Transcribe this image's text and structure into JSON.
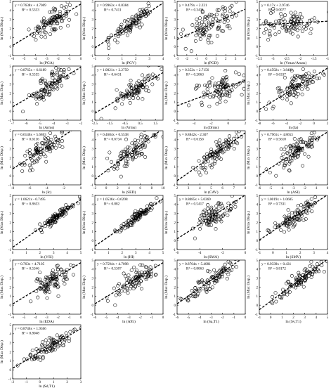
{
  "figure": {
    "ylabel": "ln (Max Disp.)",
    "panels": [
      {
        "xlabel": "ln (PGA)",
        "eq": "y = 0.7638x + 4.7069",
        "r2": "R² = 0.5333",
        "xlim": [
          -6,
          0
        ],
        "xticks": [
          -6,
          -5,
          -4,
          -3,
          -2,
          -1,
          0
        ],
        "ylim": [
          -1,
          5
        ],
        "yticks": [
          -1,
          0,
          1,
          2,
          3,
          4,
          5
        ],
        "slope": 0.7638,
        "intercept": 4.7069,
        "cx": -2.5,
        "sx": 0.9
      },
      {
        "xlabel": "ln (PGV)",
        "eq": "y = 0.9963x + 0.8384",
        "r2": "R² = 0.7411",
        "xlim": [
          -1,
          4
        ],
        "xticks": [
          -1,
          0,
          1,
          2,
          3,
          4
        ],
        "ylim": [
          -1,
          5
        ],
        "yticks": [
          -1,
          0,
          1,
          2,
          3,
          4,
          5
        ],
        "slope": 0.9963,
        "intercept": 0.8384,
        "cx": 1.8,
        "sx": 0.8
      },
      {
        "xlabel": "ln (PGD)",
        "eq": "y = 0.479x + 2.221",
        "r2": "R² = 0.3431",
        "xlim": [
          -3,
          4
        ],
        "xticks": [
          -3,
          -2,
          -1,
          0,
          1,
          2,
          3,
          4
        ],
        "ylim": [
          -1,
          5
        ],
        "yticks": [
          -1,
          0,
          1,
          2,
          3,
          4,
          5
        ],
        "slope": 0.479,
        "intercept": 2.221,
        "cx": 0.5,
        "sx": 1.2
      },
      {
        "xlabel": "ln (Vmax/Amax)",
        "eq": "y = 0.17x + 2.9746",
        "r2": "R² = 0.0077",
        "xlim": [
          -3.5,
          -1
        ],
        "xticks": [
          -3.5,
          -3,
          -2.5,
          -2,
          -1.5,
          -1
        ],
        "ylim": [
          -1,
          5
        ],
        "yticks": [
          -1,
          0,
          1,
          2,
          3,
          4,
          5
        ],
        "slope": 0.17,
        "intercept": 2.9746,
        "cx": -2.4,
        "sx": 0.5
      },
      {
        "xlabel": "ln (Arms)",
        "eq": "y = 0.8765x + 6.6189",
        "r2": "R² = 0.5555",
        "xlim": [
          -7,
          -2
        ],
        "xticks": [
          -7,
          -6,
          -5,
          -4,
          -3,
          -2
        ],
        "ylim": [
          -1,
          5
        ],
        "yticks": [
          -1,
          0,
          1,
          2,
          3,
          4,
          5
        ],
        "slope": 0.8765,
        "intercept": 6.6189,
        "cx": -4.2,
        "sx": 0.8
      },
      {
        "xlabel": "ln (Vrms)",
        "eq": "y = 1.0021x + 2.2759",
        "r2": "R² = 0.6431",
        "xlim": [
          -2.5,
          2
        ],
        "xticks": [
          -2.5,
          -1.5,
          -0.5,
          0.5,
          1.5
        ],
        "ylim": [
          -1,
          5
        ],
        "yticks": [
          -1,
          0,
          1,
          2,
          3,
          4,
          5
        ],
        "slope": 1.0021,
        "intercept": 2.2759,
        "cx": 0.3,
        "sx": 0.8
      },
      {
        "xlabel": "ln (Drms)",
        "eq": "y = 0.352x + 2.7156",
        "r2": "R² = 0.2063",
        "xlim": [
          -6,
          2
        ],
        "xticks": [
          -6,
          -4,
          -2,
          0,
          2
        ],
        "ylim": [
          -1,
          5
        ],
        "yticks": [
          -1,
          0,
          1,
          2,
          3,
          4,
          5
        ],
        "slope": 0.352,
        "intercept": 2.7156,
        "cx": -0.8,
        "sx": 1.5
      },
      {
        "xlabel": "ln (Ia)",
        "eq": "y = 0.4592x + 3.8492",
        "r2": "R² = 0.6337",
        "xlim": [
          -8,
          2
        ],
        "xticks": [
          -8,
          -6,
          -4,
          -2,
          0,
          2
        ],
        "ylim": [
          -1,
          5
        ],
        "yticks": [
          -1,
          0,
          1,
          2,
          3,
          4,
          5
        ],
        "slope": 0.4592,
        "intercept": 3.8492,
        "cx": -2.5,
        "sx": 1.8
      },
      {
        "xlabel": "ln (Ic)",
        "eq": "y = 0.6146x + 5.6863",
        "r2": "R² = 0.6116",
        "xlim": [
          -8,
          0
        ],
        "xticks": [
          -8,
          -6,
          -4,
          -2,
          0
        ],
        "ylim": [
          -1,
          5
        ],
        "yticks": [
          -1,
          0,
          1,
          2,
          3,
          4,
          5
        ],
        "slope": 0.6146,
        "intercept": 5.6863,
        "cx": -4.5,
        "sx": 1.5
      },
      {
        "xlabel": "ln (SED)",
        "eq": "y = 0.4684x + 0.5538",
        "r2": "R² = 0.6734",
        "xlim": [
          -2,
          10
        ],
        "xticks": [
          -2,
          0,
          2,
          4,
          6,
          8,
          10
        ],
        "ylim": [
          -1,
          5
        ],
        "yticks": [
          -1,
          0,
          1,
          2,
          3,
          4,
          5
        ],
        "slope": 0.4684,
        "intercept": 0.5538,
        "cx": 4.8,
        "sx": 2.0
      },
      {
        "xlabel": "ln (CAV)",
        "eq": "y = 0.8842x - 2.307",
        "r2": "R² = 0.6156",
        "xlim": [
          2,
          8
        ],
        "xticks": [
          2,
          3,
          4,
          5,
          6,
          7,
          8
        ],
        "ylim": [
          -1,
          5
        ],
        "yticks": [
          -1,
          0,
          1,
          2,
          3,
          4,
          5
        ],
        "slope": 0.8842,
        "intercept": -2.307,
        "cx": 5.6,
        "sx": 0.9
      },
      {
        "xlabel": "ln (ASI)",
        "eq": "y = 0.7961x + 4.8653",
        "r2": "R² = 0.5618",
        "xlim": [
          -6,
          0
        ],
        "xticks": [
          -6,
          -5,
          -4,
          -3,
          -2,
          -1,
          0
        ],
        "ylim": [
          -1,
          5
        ],
        "yticks": [
          -1,
          0,
          1,
          2,
          3,
          4,
          5
        ],
        "slope": 0.7961,
        "intercept": 4.8653,
        "cx": -2.7,
        "sx": 1.0
      },
      {
        "xlabel": "ln (VSI)",
        "eq": "y = 1.0621x - 0.7495",
        "r2": "R² = 0.8633",
        "xlim": [
          0,
          5
        ],
        "xticks": [
          0,
          1,
          2,
          3,
          4,
          5
        ],
        "ylim": [
          -1,
          5
        ],
        "yticks": [
          -1,
          0,
          1,
          2,
          3,
          4,
          5
        ],
        "slope": 1.0621,
        "intercept": -0.7495,
        "cx": 3.2,
        "sx": 0.7
      },
      {
        "xlabel": "ln (HI)",
        "eq": "y = 1.0536x - 0.6298",
        "r2": "R² = 0.882",
        "xlim": [
          0,
          5
        ],
        "xticks": [
          0,
          1,
          2,
          3,
          4,
          5
        ],
        "ylim": [
          -1,
          5
        ],
        "yticks": [
          -1,
          0,
          1,
          2,
          3,
          4,
          5
        ],
        "slope": 1.0536,
        "intercept": -0.6298,
        "cx": 3.0,
        "sx": 0.7
      },
      {
        "xlabel": "ln (SMA)",
        "eq": "y = 0.8085x + 5.0369",
        "r2": "R² = 0.5417",
        "xlim": [
          -6,
          0
        ],
        "xticks": [
          -6,
          -4,
          -2,
          0
        ],
        "ylim": [
          -1,
          5
        ],
        "yticks": [
          -1,
          0,
          1,
          2,
          3,
          4,
          5
        ],
        "slope": 0.8085,
        "intercept": 5.0369,
        "cx": -2.8,
        "sx": 0.9
      },
      {
        "xlabel": "ln (SMV)",
        "eq": "y = 1.0019x + 1.0605",
        "r2": "R² = 0.7331",
        "xlim": [
          -1,
          4
        ],
        "xticks": [
          -1,
          0,
          1,
          2,
          3,
          4
        ],
        "ylim": [
          -1,
          5
        ],
        "yticks": [
          -1,
          0,
          1,
          2,
          3,
          4,
          5
        ],
        "slope": 1.0019,
        "intercept": 1.0605,
        "cx": 1.6,
        "sx": 0.8
      },
      {
        "xlabel": "ln (EDA)",
        "eq": "y = 0.763x + 4.7105",
        "r2": "R² = 0.5346",
        "xlim": [
          -6,
          0
        ],
        "xticks": [
          -6,
          -5,
          -4,
          -3,
          -2,
          -1,
          0
        ],
        "ylim": [
          -1,
          5
        ],
        "yticks": [
          -1,
          0,
          1,
          2,
          3,
          4,
          5
        ],
        "slope": 0.763,
        "intercept": 4.7105,
        "cx": -2.4,
        "sx": 0.9
      },
      {
        "xlabel": "ln (A95)",
        "eq": "y = 0.7594x + 4.7098",
        "r2": "R² = 0.5307",
        "xlim": [
          -6,
          0
        ],
        "xticks": [
          -6,
          -5,
          -4,
          -3,
          -2,
          -1,
          0
        ],
        "ylim": [
          -1,
          5
        ],
        "yticks": [
          -1,
          0,
          1,
          2,
          3,
          4,
          5
        ],
        "slope": 0.7594,
        "intercept": 4.7098,
        "cx": -2.5,
        "sx": 0.9
      },
      {
        "xlabel": "ln (Sa,T1)",
        "eq": "y = 0.8764x + 5.4081",
        "r2": "R² = 0.8063",
        "xlim": [
          -6,
          0
        ],
        "xticks": [
          -6,
          -5,
          -4,
          -3,
          -2,
          -1,
          0
        ],
        "ylim": [
          -1,
          5
        ],
        "yticks": [
          -1,
          0,
          1,
          2,
          3,
          4,
          5
        ],
        "slope": 0.8764,
        "intercept": 5.4081,
        "cx": -3.0,
        "sx": 1.1
      },
      {
        "xlabel": "ln (Sv,T1)",
        "eq": "y = 0.9339x + 0.431",
        "r2": "R² = 0.8172",
        "xlim": [
          -1,
          5
        ],
        "xticks": [
          -1,
          0,
          1,
          2,
          3,
          4,
          5
        ],
        "ylim": [
          -1,
          5
        ],
        "yticks": [
          -1,
          0,
          1,
          2,
          3,
          4,
          5
        ],
        "slope": 0.9339,
        "intercept": 0.431,
        "cx": 2.5,
        "sx": 1.1
      },
      {
        "xlabel": "ln (Sd,T1)",
        "eq": "y = 0.8746x + 1.9366",
        "r2": "R² = 0.8048",
        "xlim": [
          -2,
          3
        ],
        "xticks": [
          -2,
          -1,
          0,
          1,
          2,
          3
        ],
        "ylim": [
          -1,
          5
        ],
        "yticks": [
          -1,
          0,
          1,
          2,
          3,
          4,
          5
        ],
        "slope": 0.8746,
        "intercept": 1.9366,
        "cx": 0.8,
        "sx": 1.0
      }
    ]
  },
  "chart_data": [
    {
      "type": "scatter",
      "title": "",
      "xlabel": "ln (PGA)",
      "ylabel": "ln (Max Disp.)",
      "trendline": "y = 0.7638x + 4.7069",
      "r2": 0.5333
    },
    {
      "type": "scatter",
      "title": "",
      "xlabel": "ln (PGV)",
      "ylabel": "ln (Max Disp.)",
      "trendline": "y = 0.9963x + 0.8384",
      "r2": 0.7411
    },
    {
      "type": "scatter",
      "title": "",
      "xlabel": "ln (PGD)",
      "ylabel": "ln (Max Disp.)",
      "trendline": "y = 0.479x + 2.221",
      "r2": 0.3431
    },
    {
      "type": "scatter",
      "title": "",
      "xlabel": "ln (Vmax/Amax)",
      "ylabel": "ln (Max Disp.)",
      "trendline": "y = 0.17x + 2.9746",
      "r2": 0.0077
    },
    {
      "type": "scatter",
      "title": "",
      "xlabel": "ln (Arms)",
      "ylabel": "ln (Max Disp.)",
      "trendline": "y = 0.8765x + 6.6189",
      "r2": 0.5555
    },
    {
      "type": "scatter",
      "title": "",
      "xlabel": "ln (Vrms)",
      "ylabel": "ln (Max Disp.)",
      "trendline": "y = 1.0021x + 2.2759",
      "r2": 0.6431
    },
    {
      "type": "scatter",
      "title": "",
      "xlabel": "ln (Drms)",
      "ylabel": "ln (Max Disp.)",
      "trendline": "y = 0.352x + 2.7156",
      "r2": 0.2063
    },
    {
      "type": "scatter",
      "title": "",
      "xlabel": "ln (Ia)",
      "ylabel": "ln (Max Disp.)",
      "trendline": "y = 0.4592x + 3.8492",
      "r2": 0.6337
    },
    {
      "type": "scatter",
      "title": "",
      "xlabel": "ln (Ic)",
      "ylabel": "ln (Max Disp.)",
      "trendline": "y = 0.6146x + 5.6863",
      "r2": 0.6116
    },
    {
      "type": "scatter",
      "title": "",
      "xlabel": "ln (SED)",
      "ylabel": "ln (Max Disp.)",
      "trendline": "y = 0.4684x + 0.5538",
      "r2": 0.6734
    },
    {
      "type": "scatter",
      "title": "",
      "xlabel": "ln (CAV)",
      "ylabel": "ln (Max Disp.)",
      "trendline": "y = 0.8842x - 2.307",
      "r2": 0.6156
    },
    {
      "type": "scatter",
      "title": "",
      "xlabel": "ln (ASI)",
      "ylabel": "ln (Max Disp.)",
      "trendline": "y = 0.7961x + 4.8653",
      "r2": 0.5618
    },
    {
      "type": "scatter",
      "title": "",
      "xlabel": "ln (VSI)",
      "ylabel": "ln (Max Disp.)",
      "trendline": "y = 1.0621x - 0.7495",
      "r2": 0.8633
    },
    {
      "type": "scatter",
      "title": "",
      "xlabel": "ln (HI)",
      "ylabel": "ln (Max Disp.)",
      "trendline": "y = 1.0536x - 0.6298",
      "r2": 0.882
    },
    {
      "type": "scatter",
      "title": "",
      "xlabel": "ln (SMA)",
      "ylabel": "ln (Max Disp.)",
      "trendline": "y = 0.8085x + 5.0369",
      "r2": 0.5417
    },
    {
      "type": "scatter",
      "title": "",
      "xlabel": "ln (SMV)",
      "ylabel": "ln (Max Disp.)",
      "trendline": "y = 1.0019x + 1.0605",
      "r2": 0.7331
    },
    {
      "type": "scatter",
      "title": "",
      "xlabel": "ln (EDA)",
      "ylabel": "ln (Max Disp.)",
      "trendline": "y = 0.763x + 4.7105",
      "r2": 0.5346
    },
    {
      "type": "scatter",
      "title": "",
      "xlabel": "ln (A95)",
      "ylabel": "ln (Max Disp.)",
      "trendline": "y = 0.7594x + 4.7098",
      "r2": 0.5307
    },
    {
      "type": "scatter",
      "title": "",
      "xlabel": "ln (Sa,T1)",
      "ylabel": "ln (Max Disp.)",
      "trendline": "y = 0.8764x + 5.4081",
      "r2": 0.8063
    },
    {
      "type": "scatter",
      "title": "",
      "xlabel": "ln (Sv,T1)",
      "ylabel": "ln (Max Disp.)",
      "trendline": "y = 0.9339x + 0.431",
      "r2": 0.8172
    },
    {
      "type": "scatter",
      "title": "",
      "xlabel": "ln (Sd,T1)",
      "ylabel": "ln (Max Disp.)",
      "trendline": "y = 0.8746x + 1.9366",
      "r2": 0.8048
    }
  ]
}
